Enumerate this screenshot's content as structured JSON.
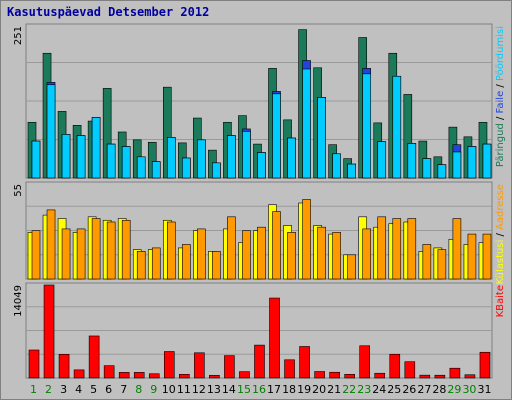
{
  "title": "Kasutuspäevad Detsember 2012",
  "colors": {
    "background": "#c0c0c0",
    "panel": "#c0c0c0",
    "grid": "#9a9a9a",
    "hits": "#1a7a5a",
    "files": "#2244dd",
    "pages": "#00ccff",
    "visits": "#ffff00",
    "sites": "#ff9900",
    "kbytes": "#ff0000",
    "weekend_label": "#008000",
    "weekday_label": "#000000",
    "title": "#0000a0"
  },
  "chart_data": [
    {
      "type": "bar",
      "title": "",
      "y_tick_label": "251",
      "ylim": [
        0,
        251
      ],
      "ylabel": "Päringud / Faile / Pöördumisi",
      "legend": [
        {
          "name": "Päringud",
          "color": "#1a7a5a"
        },
        {
          "name": "Faile",
          "color": "#2244dd"
        },
        {
          "name": "Pöördumisi",
          "color": "#00ccff"
        }
      ],
      "categories": [
        "1",
        "2",
        "3",
        "4",
        "5",
        "6",
        "7",
        "8",
        "9",
        "10",
        "11",
        "12",
        "13",
        "14",
        "15",
        "16",
        "17",
        "18",
        "19",
        "20",
        "21",
        "22",
        "23",
        "24",
        "25",
        "26",
        "27",
        "28",
        "29",
        "30",
        "31"
      ],
      "series": [
        {
          "name": "Päringud",
          "values": [
            92,
            206,
            110,
            87,
            94,
            148,
            76,
            63,
            59,
            150,
            58,
            99,
            46,
            92,
            103,
            56,
            181,
            96,
            245,
            182,
            55,
            32,
            232,
            91,
            206,
            138,
            61,
            35,
            84,
            68,
            92
          ]
        },
        {
          "name": "Faile",
          "values": [
            61,
            158,
            72,
            70,
            100,
            56,
            52,
            35,
            27,
            67,
            33,
            63,
            25,
            70,
            81,
            42,
            143,
            66,
            194,
            133,
            40,
            23,
            181,
            60,
            168,
            57,
            32,
            22,
            55,
            52,
            56
          ]
        },
        {
          "name": "Pöördumisi",
          "values": [
            61,
            154,
            72,
            70,
            100,
            56,
            52,
            35,
            27,
            67,
            33,
            63,
            25,
            70,
            77,
            42,
            139,
            66,
            180,
            133,
            40,
            23,
            172,
            60,
            168,
            57,
            32,
            22,
            43,
            52,
            56
          ]
        }
      ]
    },
    {
      "type": "bar",
      "title": "",
      "y_tick_label": "55",
      "ylim": [
        0,
        55
      ],
      "ylabel": "Külastusi / Aadresse",
      "legend": [
        {
          "name": "Külastusi",
          "color": "#ffff00"
        },
        {
          "name": "Aadresse",
          "color": "#ff9900"
        }
      ],
      "categories": [
        "1",
        "2",
        "3",
        "4",
        "5",
        "6",
        "7",
        "8",
        "9",
        "10",
        "11",
        "12",
        "13",
        "14",
        "15",
        "16",
        "17",
        "18",
        "19",
        "20",
        "21",
        "22",
        "23",
        "24",
        "25",
        "26",
        "27",
        "28",
        "29",
        "30",
        "31"
      ],
      "series": [
        {
          "name": "Külastusi",
          "values": [
            27,
            37,
            35,
            27,
            36,
            34,
            35,
            17,
            17,
            34,
            18,
            28,
            16,
            29,
            21,
            28,
            43,
            31,
            44,
            31,
            26,
            14,
            36,
            30,
            32,
            33,
            16,
            18,
            23,
            20,
            21
          ]
        },
        {
          "name": "Aadresse",
          "values": [
            28,
            40,
            29,
            29,
            35,
            33,
            34,
            16,
            18,
            33,
            20,
            29,
            16,
            36,
            28,
            30,
            39,
            27,
            46,
            30,
            27,
            14,
            29,
            36,
            35,
            35,
            20,
            17,
            35,
            26,
            26
          ]
        }
      ]
    },
    {
      "type": "bar",
      "title": "",
      "y_tick_label": "14049",
      "ylim": [
        0,
        14049
      ],
      "ylabel": "KBaite",
      "legend": [
        {
          "name": "KBaite",
          "color": "#ff0000"
        }
      ],
      "categories": [
        "1",
        "2",
        "3",
        "4",
        "5",
        "6",
        "7",
        "8",
        "9",
        "10",
        "11",
        "12",
        "13",
        "14",
        "15",
        "16",
        "17",
        "18",
        "19",
        "20",
        "21",
        "22",
        "23",
        "24",
        "25",
        "26",
        "27",
        "28",
        "29",
        "30",
        "31"
      ],
      "series": [
        {
          "name": "KBaite",
          "values": [
            4230,
            14049,
            3580,
            1230,
            6350,
            1860,
            850,
            850,
            640,
            4000,
            560,
            3810,
            410,
            3380,
            960,
            4970,
            12080,
            2750,
            4760,
            980,
            870,
            560,
            4870,
            720,
            3590,
            2460,
            430,
            420,
            1480,
            490,
            3890
          ]
        }
      ]
    }
  ],
  "weekend_days": [
    "1",
    "2",
    "8",
    "9",
    "15",
    "16",
    "22",
    "23",
    "29",
    "30"
  ]
}
